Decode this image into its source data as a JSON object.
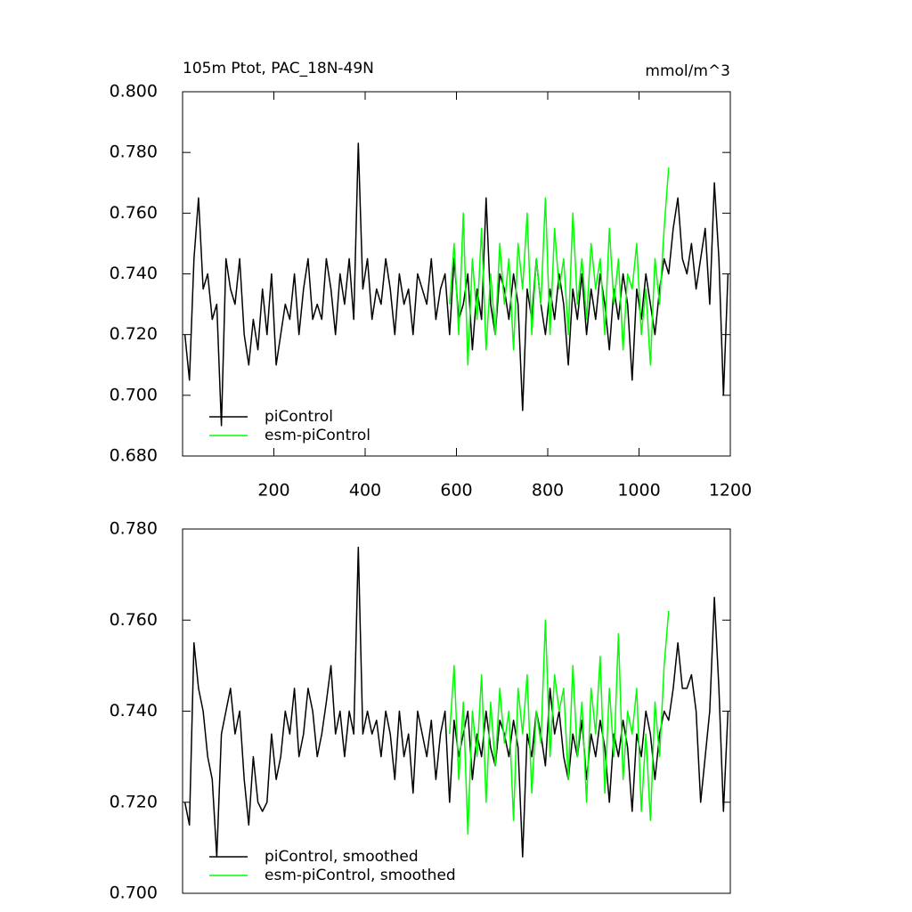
{
  "chart_data": [
    {
      "type": "line",
      "title": "105m Ptot, PAC_18N-49N",
      "unit_label": "mmol/m^3",
      "xlim": [
        0,
        1200
      ],
      "xticks": [
        200,
        400,
        600,
        800,
        1000,
        1200
      ],
      "ylim": [
        0.68,
        0.8
      ],
      "yticks": [
        {
          "value": 0.68,
          "label": "0.680"
        },
        {
          "value": 0.7,
          "label": "0.700"
        },
        {
          "value": 0.72,
          "label": "0.720"
        },
        {
          "value": 0.74,
          "label": "0.740"
        },
        {
          "value": 0.76,
          "label": "0.760"
        },
        {
          "value": 0.78,
          "label": "0.780"
        },
        {
          "value": 0.8,
          "label": "0.800"
        }
      ],
      "series": [
        {
          "name": "piControl",
          "color": "#000000",
          "x": [
            5,
            15,
            25,
            35,
            45,
            55,
            65,
            75,
            85,
            95,
            105,
            115,
            125,
            135,
            145,
            155,
            165,
            175,
            185,
            195,
            205,
            215,
            225,
            235,
            245,
            255,
            265,
            275,
            285,
            295,
            305,
            315,
            325,
            335,
            345,
            355,
            365,
            375,
            385,
            395,
            405,
            415,
            425,
            435,
            445,
            455,
            465,
            475,
            485,
            495,
            505,
            515,
            525,
            535,
            545,
            555,
            565,
            575,
            585,
            595,
            605,
            615,
            625,
            635,
            645,
            655,
            665,
            675,
            685,
            695,
            705,
            715,
            725,
            735,
            745,
            755,
            765,
            775,
            785,
            795,
            805,
            815,
            825,
            835,
            845,
            855,
            865,
            875,
            885,
            895,
            905,
            915,
            925,
            935,
            945,
            955,
            965,
            975,
            985,
            995,
            1005,
            1015,
            1025,
            1035,
            1045,
            1055,
            1065,
            1075,
            1085,
            1095,
            1105,
            1115,
            1125,
            1135,
            1145,
            1155,
            1165,
            1175,
            1185,
            1195
          ],
          "values": [
            0.72,
            0.705,
            0.745,
            0.765,
            0.735,
            0.74,
            0.725,
            0.73,
            0.69,
            0.745,
            0.735,
            0.73,
            0.745,
            0.72,
            0.71,
            0.725,
            0.715,
            0.735,
            0.72,
            0.74,
            0.71,
            0.72,
            0.73,
            0.725,
            0.74,
            0.72,
            0.735,
            0.745,
            0.725,
            0.73,
            0.725,
            0.745,
            0.735,
            0.72,
            0.74,
            0.73,
            0.745,
            0.725,
            0.783,
            0.735,
            0.745,
            0.725,
            0.735,
            0.73,
            0.745,
            0.735,
            0.72,
            0.74,
            0.73,
            0.735,
            0.72,
            0.74,
            0.735,
            0.73,
            0.745,
            0.725,
            0.735,
            0.74,
            0.72,
            0.745,
            0.725,
            0.73,
            0.74,
            0.715,
            0.735,
            0.725,
            0.765,
            0.73,
            0.72,
            0.74,
            0.735,
            0.725,
            0.74,
            0.73,
            0.695,
            0.735,
            0.725,
            0.745,
            0.73,
            0.72,
            0.735,
            0.725,
            0.74,
            0.73,
            0.71,
            0.735,
            0.725,
            0.74,
            0.72,
            0.735,
            0.725,
            0.74,
            0.73,
            0.715,
            0.735,
            0.725,
            0.74,
            0.73,
            0.705,
            0.735,
            0.725,
            0.74,
            0.73,
            0.72,
            0.735,
            0.745,
            0.74,
            0.755,
            0.765,
            0.745,
            0.74,
            0.75,
            0.735,
            0.745,
            0.755,
            0.73,
            0.77,
            0.745,
            0.7,
            0.74
          ]
        },
        {
          "name": "esm-piControl",
          "color": "#00ff00",
          "x": [
            585,
            595,
            605,
            615,
            625,
            635,
            645,
            655,
            665,
            675,
            685,
            695,
            705,
            715,
            725,
            735,
            745,
            755,
            765,
            775,
            785,
            795,
            805,
            815,
            825,
            835,
            845,
            855,
            865,
            875,
            885,
            895,
            905,
            915,
            925,
            935,
            945,
            955,
            965,
            975,
            985,
            995,
            1005,
            1015,
            1025,
            1035,
            1045,
            1055,
            1065
          ],
          "values": [
            0.73,
            0.75,
            0.72,
            0.76,
            0.71,
            0.745,
            0.725,
            0.755,
            0.715,
            0.74,
            0.72,
            0.75,
            0.73,
            0.745,
            0.715,
            0.75,
            0.735,
            0.76,
            0.72,
            0.745,
            0.73,
            0.765,
            0.72,
            0.755,
            0.735,
            0.745,
            0.72,
            0.76,
            0.73,
            0.745,
            0.725,
            0.75,
            0.735,
            0.745,
            0.72,
            0.755,
            0.73,
            0.745,
            0.715,
            0.74,
            0.735,
            0.75,
            0.72,
            0.735,
            0.71,
            0.745,
            0.73,
            0.755,
            0.775
          ]
        }
      ]
    },
    {
      "type": "line",
      "xlim": [
        0,
        1200
      ],
      "ylim": [
        0.7,
        0.78
      ],
      "yticks": [
        {
          "value": 0.7,
          "label": "0.700"
        },
        {
          "value": 0.72,
          "label": "0.720"
        },
        {
          "value": 0.74,
          "label": "0.740"
        },
        {
          "value": 0.76,
          "label": "0.760"
        },
        {
          "value": 0.78,
          "label": "0.780"
        }
      ],
      "series": [
        {
          "name": "piControl, smoothed",
          "color": "#000000",
          "x": [
            5,
            15,
            25,
            35,
            45,
            55,
            65,
            75,
            85,
            95,
            105,
            115,
            125,
            135,
            145,
            155,
            165,
            175,
            185,
            195,
            205,
            215,
            225,
            235,
            245,
            255,
            265,
            275,
            285,
            295,
            305,
            315,
            325,
            335,
            345,
            355,
            365,
            375,
            385,
            395,
            405,
            415,
            425,
            435,
            445,
            455,
            465,
            475,
            485,
            495,
            505,
            515,
            525,
            535,
            545,
            555,
            565,
            575,
            585,
            595,
            605,
            615,
            625,
            635,
            645,
            655,
            665,
            675,
            685,
            695,
            705,
            715,
            725,
            735,
            745,
            755,
            765,
            775,
            785,
            795,
            805,
            815,
            825,
            835,
            845,
            855,
            865,
            875,
            885,
            895,
            905,
            915,
            925,
            935,
            945,
            955,
            965,
            975,
            985,
            995,
            1005,
            1015,
            1025,
            1035,
            1045,
            1055,
            1065,
            1075,
            1085,
            1095,
            1105,
            1115,
            1125,
            1135,
            1145,
            1155,
            1165,
            1175,
            1185,
            1195
          ],
          "values": [
            0.72,
            0.715,
            0.755,
            0.745,
            0.74,
            0.73,
            0.725,
            0.708,
            0.735,
            0.74,
            0.745,
            0.735,
            0.74,
            0.725,
            0.715,
            0.73,
            0.72,
            0.718,
            0.72,
            0.735,
            0.725,
            0.73,
            0.74,
            0.735,
            0.745,
            0.73,
            0.735,
            0.745,
            0.74,
            0.73,
            0.735,
            0.742,
            0.75,
            0.735,
            0.74,
            0.73,
            0.74,
            0.735,
            0.776,
            0.735,
            0.74,
            0.735,
            0.738,
            0.73,
            0.74,
            0.735,
            0.725,
            0.74,
            0.73,
            0.735,
            0.722,
            0.74,
            0.735,
            0.73,
            0.738,
            0.725,
            0.735,
            0.74,
            0.72,
            0.738,
            0.73,
            0.735,
            0.74,
            0.725,
            0.735,
            0.73,
            0.74,
            0.732,
            0.728,
            0.738,
            0.735,
            0.73,
            0.738,
            0.732,
            0.708,
            0.735,
            0.73,
            0.74,
            0.735,
            0.728,
            0.745,
            0.735,
            0.74,
            0.73,
            0.725,
            0.735,
            0.73,
            0.738,
            0.725,
            0.735,
            0.73,
            0.738,
            0.732,
            0.72,
            0.735,
            0.73,
            0.738,
            0.732,
            0.718,
            0.735,
            0.73,
            0.74,
            0.735,
            0.725,
            0.735,
            0.74,
            0.738,
            0.745,
            0.755,
            0.745,
            0.745,
            0.748,
            0.74,
            0.72,
            0.73,
            0.74,
            0.765,
            0.745,
            0.718,
            0.74
          ]
        },
        {
          "name": "esm-piControl, smoothed",
          "color": "#00ff00",
          "x": [
            585,
            595,
            605,
            615,
            625,
            635,
            645,
            655,
            665,
            675,
            685,
            695,
            705,
            715,
            725,
            735,
            745,
            755,
            765,
            775,
            785,
            795,
            805,
            815,
            825,
            835,
            845,
            855,
            865,
            875,
            885,
            895,
            905,
            915,
            925,
            935,
            945,
            955,
            965,
            975,
            985,
            995,
            1005,
            1015,
            1025,
            1035,
            1045,
            1055,
            1065
          ],
          "values": [
            0.735,
            0.75,
            0.725,
            0.742,
            0.713,
            0.74,
            0.73,
            0.748,
            0.72,
            0.742,
            0.728,
            0.745,
            0.733,
            0.74,
            0.716,
            0.745,
            0.735,
            0.748,
            0.722,
            0.74,
            0.733,
            0.76,
            0.73,
            0.748,
            0.74,
            0.745,
            0.725,
            0.75,
            0.73,
            0.742,
            0.72,
            0.745,
            0.735,
            0.752,
            0.722,
            0.745,
            0.73,
            0.757,
            0.725,
            0.74,
            0.735,
            0.745,
            0.718,
            0.735,
            0.716,
            0.742,
            0.73,
            0.75,
            0.762
          ]
        }
      ]
    }
  ]
}
